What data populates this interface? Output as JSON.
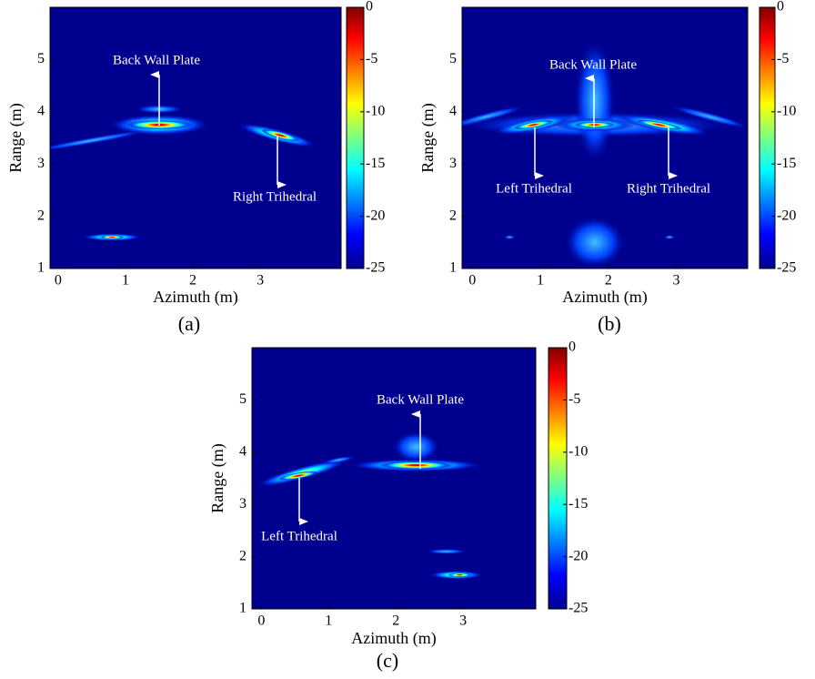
{
  "chart_data": [
    {
      "type": "heatmap",
      "colormap": "jet",
      "xlabel": "Azimuth (m)",
      "ylabel": "Range (m)",
      "xlim": [
        -0.12,
        4.2
      ],
      "ylim": [
        1,
        6
      ],
      "xticks": [
        0,
        1,
        2,
        3
      ],
      "yticks": [
        1,
        2,
        3,
        4,
        5
      ],
      "zlim": [
        -25,
        0
      ],
      "zticks": [
        0,
        -5,
        -10,
        -15,
        -20,
        -25
      ],
      "annotations": [
        "Back Wall Plate",
        "Right Trihedral"
      ],
      "caption": "(a)"
    },
    {
      "type": "heatmap",
      "colormap": "jet",
      "xlabel": "Azimuth (m)",
      "ylabel": "Range (m)",
      "xlim": [
        -0.15,
        4.05
      ],
      "ylim": [
        1,
        6
      ],
      "xticks": [
        0,
        1,
        2,
        3
      ],
      "yticks": [
        1,
        2,
        3,
        4,
        5
      ],
      "zlim": [
        -25,
        0
      ],
      "zticks": [
        0,
        -5,
        -10,
        -15,
        -20,
        -25
      ],
      "annotations": [
        "Back Wall Plate",
        "Left Trihedral",
        "Right Trihedral"
      ],
      "caption": "(b)"
    },
    {
      "type": "heatmap",
      "colormap": "jet",
      "xlabel": "Azimuth (m)",
      "ylabel": "Range (m)",
      "xlim": [
        -0.14,
        4.08
      ],
      "ylim": [
        1,
        6
      ],
      "xticks": [
        0,
        1,
        2,
        3
      ],
      "yticks": [
        1,
        2,
        3,
        4,
        5
      ],
      "zlim": [
        -25,
        0
      ],
      "zticks": [
        0,
        -5,
        -10,
        -15,
        -20,
        -25
      ],
      "annotations": [
        "Back Wall Plate",
        "Left Trihedral"
      ],
      "caption": "(c)"
    }
  ]
}
